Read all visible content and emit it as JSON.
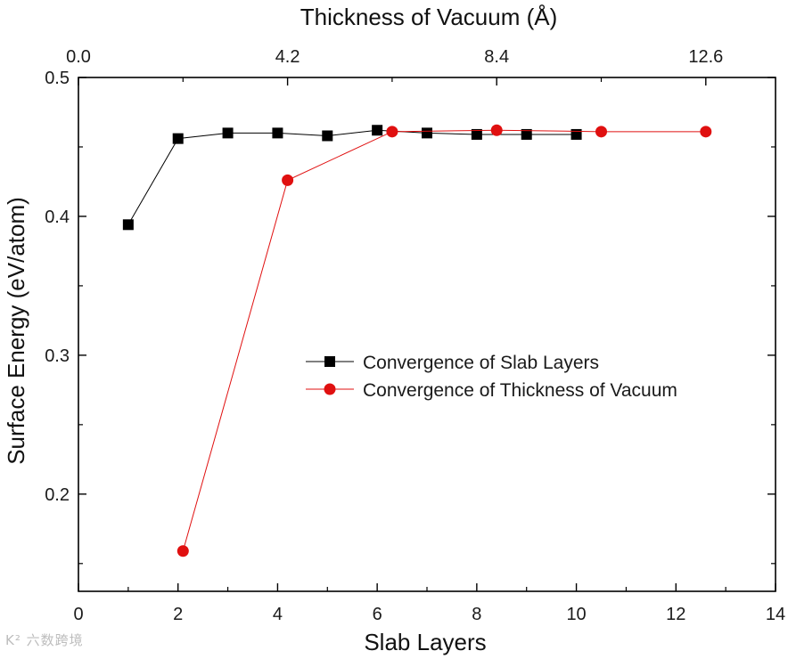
{
  "chart_data": {
    "type": "line",
    "xlabel": "Slab Layers",
    "x2label": "Thickness of Vacuum (Å)",
    "ylabel": "Surface Energy (eV/atom)",
    "xlim": [
      0,
      14
    ],
    "x2lim": [
      0,
      14
    ],
    "ylim": [
      0.13,
      0.5
    ],
    "xticks": [
      0,
      2,
      4,
      6,
      8,
      10,
      12,
      14
    ],
    "x2ticks": [
      0.0,
      4.2,
      8.4,
      12.6
    ],
    "x2tick_labels": [
      "0.0",
      "4.2",
      "8.4",
      "12.6"
    ],
    "yticks": [
      0.2,
      0.3,
      0.4,
      0.5
    ],
    "ytick_labels": [
      "0.2",
      "0.3",
      "0.4",
      "0.5"
    ],
    "legend_position": "center-right",
    "series": [
      {
        "name": "Convergence of Slab Layers",
        "axis": "bottom",
        "color": "#000000",
        "marker": "square",
        "x": [
          1,
          2,
          3,
          4,
          5,
          6,
          7,
          8,
          9,
          10
        ],
        "y": [
          0.394,
          0.456,
          0.46,
          0.46,
          0.458,
          0.462,
          0.46,
          0.459,
          0.459,
          0.459
        ]
      },
      {
        "name": "Convergence of Thickness of Vacuum",
        "axis": "top",
        "color": "#e01010",
        "marker": "circle",
        "x": [
          2.1,
          4.2,
          6.3,
          8.4,
          10.5,
          12.6
        ],
        "y": [
          0.159,
          0.426,
          0.461,
          0.462,
          0.461,
          0.461
        ]
      }
    ]
  },
  "watermark": "K² 六数跨境"
}
